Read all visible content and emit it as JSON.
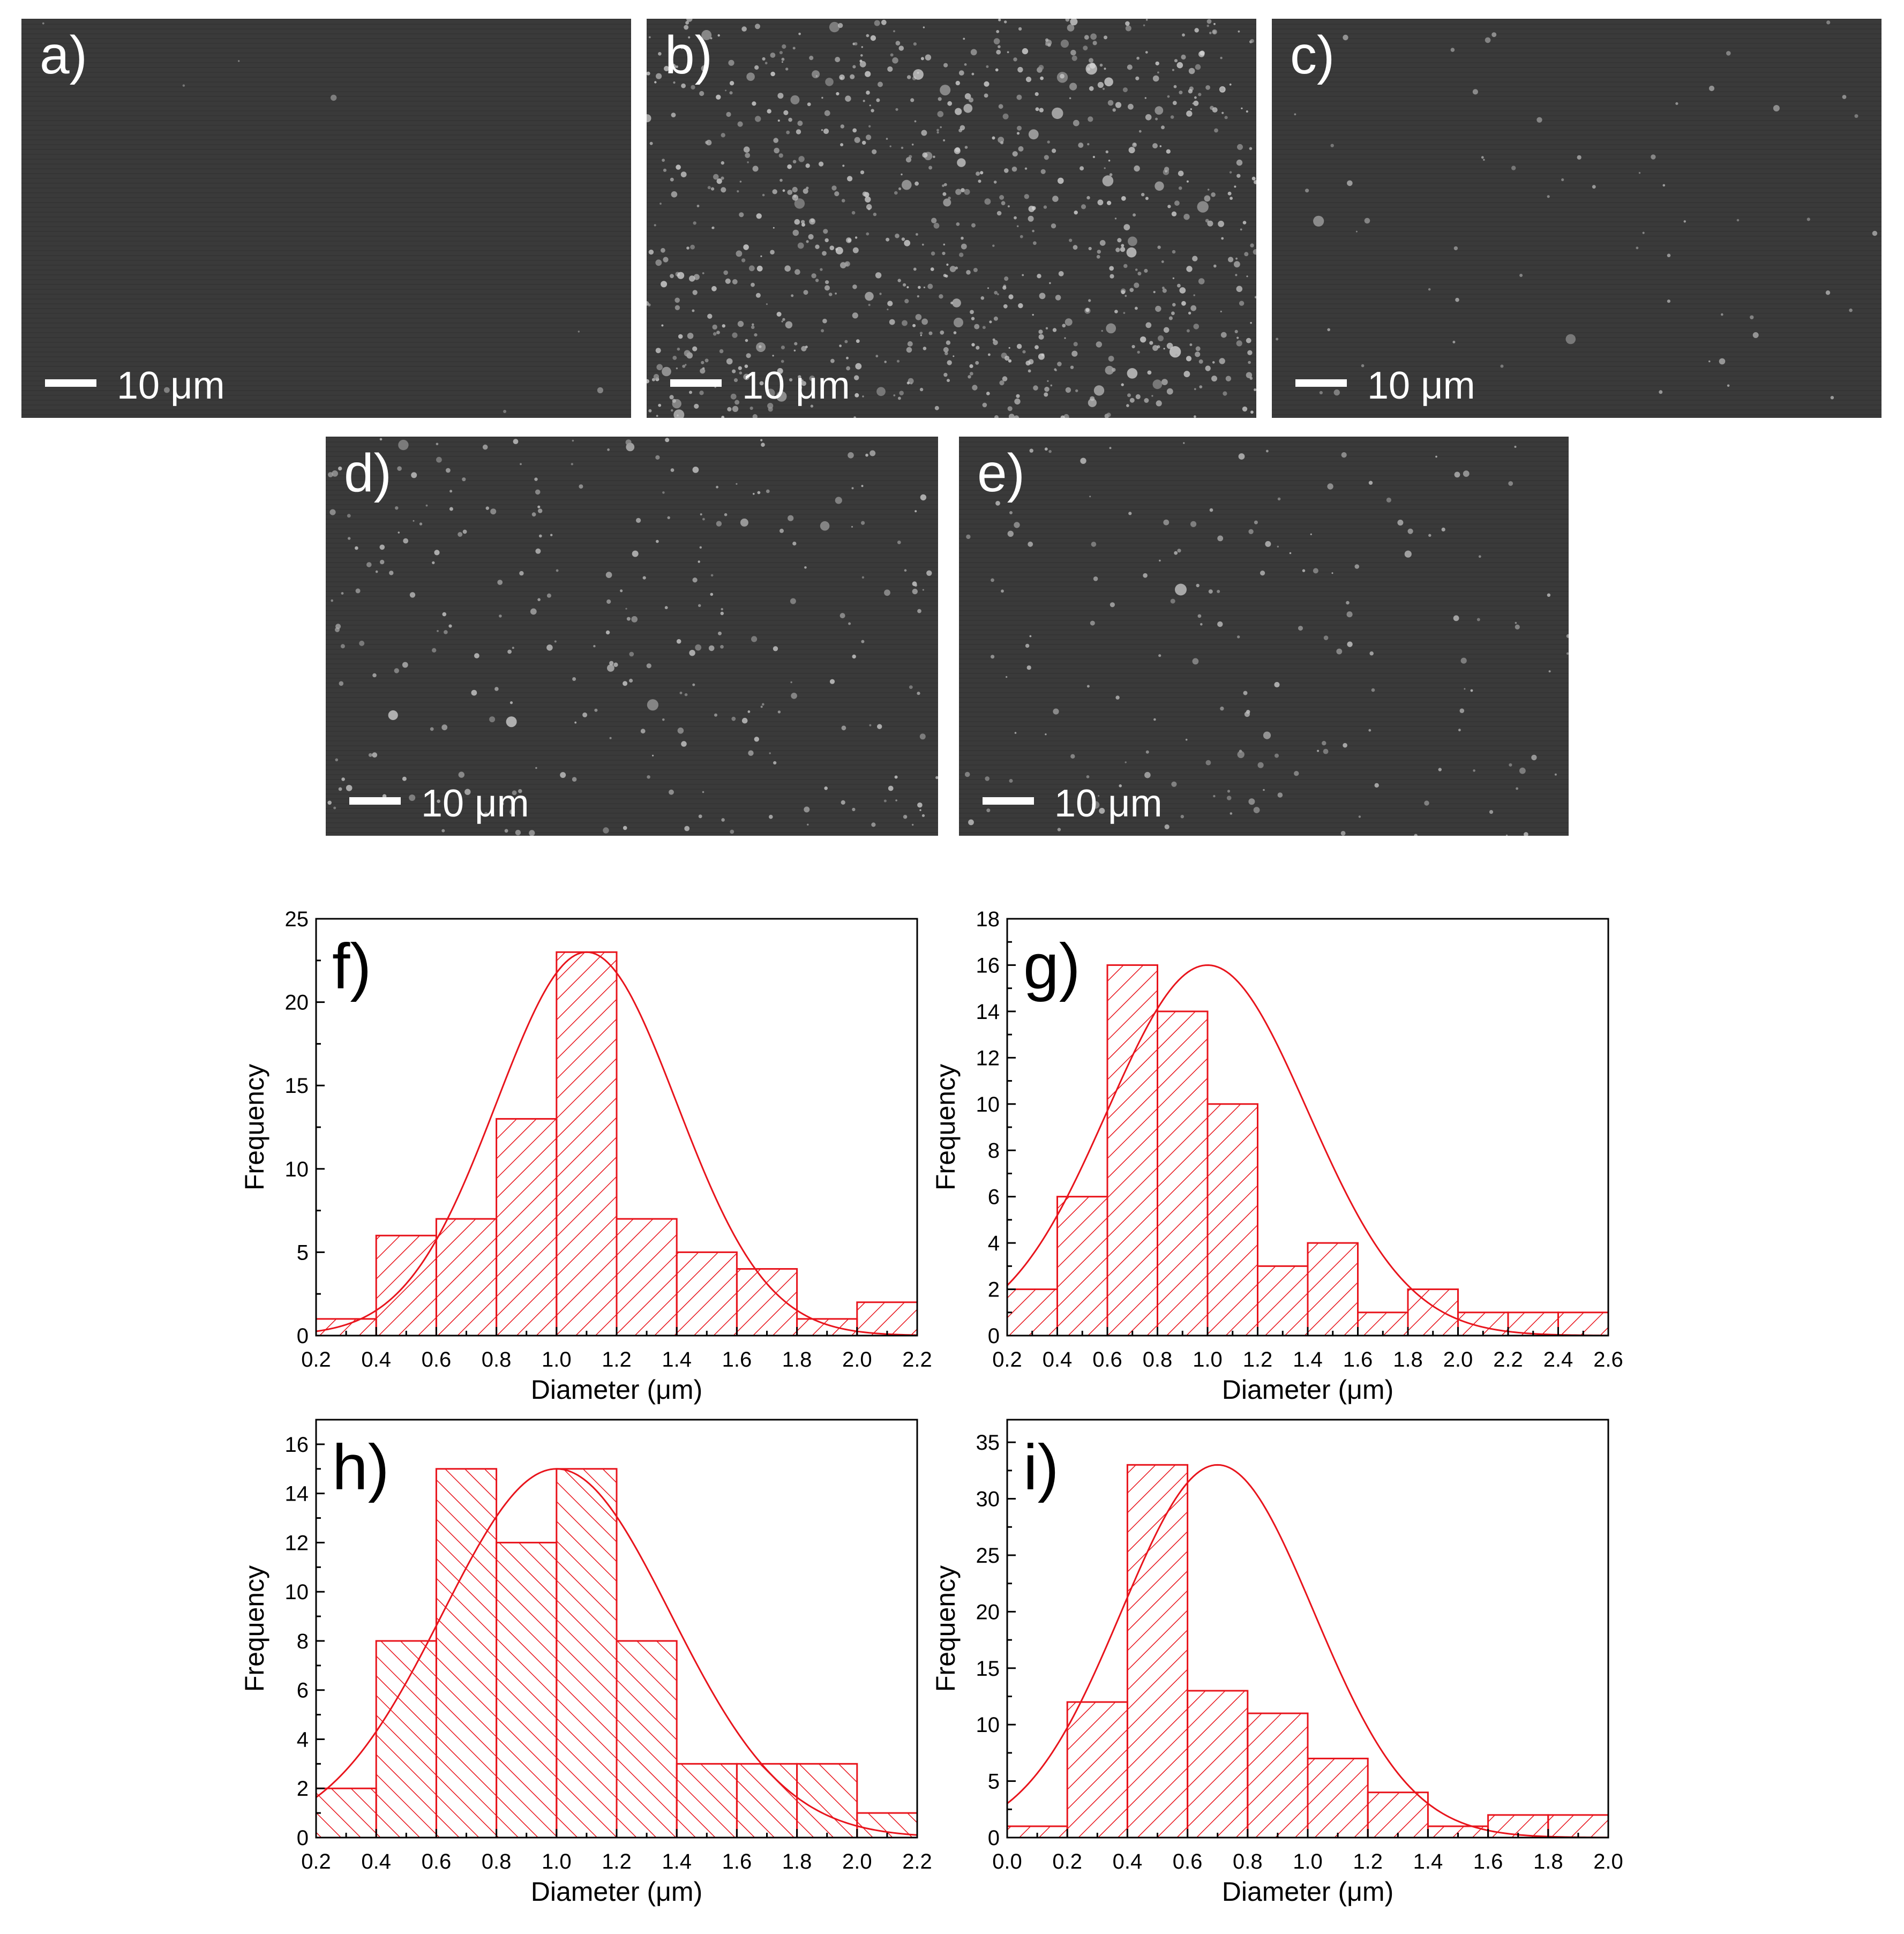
{
  "sem_panels": [
    {
      "label": "a)",
      "scale": "10 μm",
      "particles": 8,
      "brightness": 0.15
    },
    {
      "label": "b)",
      "scale": "10 μm",
      "particles": 900,
      "brightness": 0.85
    },
    {
      "label": "c)",
      "scale": "10 μm",
      "particles": 60,
      "brightness": 0.5
    },
    {
      "label": "d)",
      "scale": "10 μm",
      "particles": 260,
      "brightness": 0.75
    },
    {
      "label": "e)",
      "scale": "10 μm",
      "particles": 160,
      "brightness": 0.7
    }
  ],
  "colors": {
    "series": "#e8141c",
    "axis": "#000000",
    "sem_bg": "#3a3a3a"
  },
  "chart_data": [
    {
      "type": "bar",
      "label": "f)",
      "xlabel": "Diameter (μm)",
      "ylabel": "Frequency",
      "xlim": [
        0.2,
        2.2
      ],
      "ylim": [
        0,
        25
      ],
      "xticks": [
        "0.2",
        "0.4",
        "0.6",
        "0.8",
        "1.0",
        "1.2",
        "1.4",
        "1.6",
        "1.8",
        "2.0",
        "2.2"
      ],
      "yticks": [
        "0",
        "5",
        "10",
        "15",
        "20",
        "25"
      ],
      "bin_edges": [
        0.2,
        0.4,
        0.6,
        0.8,
        1.0,
        1.2,
        1.4,
        1.6,
        1.8,
        2.0,
        2.2
      ],
      "values": [
        1,
        6,
        7,
        13,
        23,
        7,
        5,
        4,
        1,
        2
      ],
      "fit": {
        "mean": 1.1,
        "sigma": 0.3,
        "peak": 23
      },
      "hatch": "backward"
    },
    {
      "type": "bar",
      "label": "g)",
      "xlabel": "Diameter (μm)",
      "ylabel": "Frequency",
      "xlim": [
        0.2,
        2.6
      ],
      "ylim": [
        0,
        18
      ],
      "xticks": [
        "0.2",
        "0.4",
        "0.6",
        "0.8",
        "1.0",
        "1.2",
        "1.4",
        "1.6",
        "1.8",
        "2.0",
        "2.2",
        "2.4",
        "2.6"
      ],
      "yticks": [
        "0",
        "2",
        "4",
        "6",
        "8",
        "10",
        "12",
        "14",
        "16",
        "18"
      ],
      "bin_edges": [
        0.2,
        0.4,
        0.6,
        0.8,
        1.0,
        1.2,
        1.4,
        1.6,
        1.8,
        2.0,
        2.2,
        2.4,
        2.6
      ],
      "values": [
        2,
        6,
        16,
        14,
        10,
        3,
        4,
        1,
        2,
        1,
        1,
        1
      ],
      "fit": {
        "mean": 1.0,
        "sigma": 0.4,
        "peak": 16
      },
      "hatch": "backward"
    },
    {
      "type": "bar",
      "label": "h)",
      "xlabel": "Diameter (μm)",
      "ylabel": "Frequency",
      "xlim": [
        0.2,
        2.2
      ],
      "ylim": [
        0,
        17
      ],
      "xticks": [
        "0.2",
        "0.4",
        "0.6",
        "0.8",
        "1.0",
        "1.2",
        "1.4",
        "1.6",
        "1.8",
        "2.0",
        "2.2"
      ],
      "yticks": [
        "0",
        "2",
        "4",
        "6",
        "8",
        "10",
        "12",
        "14",
        "16"
      ],
      "bin_edges": [
        0.2,
        0.4,
        0.6,
        0.8,
        1.0,
        1.2,
        1.4,
        1.6,
        1.8,
        2.0,
        2.2
      ],
      "values": [
        2,
        8,
        15,
        12,
        15,
        8,
        3,
        3,
        3,
        1
      ],
      "fit": {
        "mean": 1.0,
        "sigma": 0.38,
        "peak": 15
      },
      "hatch": "forward"
    },
    {
      "type": "bar",
      "label": "i)",
      "xlabel": "Diameter (μm)",
      "ylabel": "Frequency",
      "xlim": [
        0.0,
        2.0
      ],
      "ylim": [
        0,
        37
      ],
      "xticks": [
        "0.0",
        "0.2",
        "0.4",
        "0.6",
        "0.8",
        "1.0",
        "1.2",
        "1.4",
        "1.6",
        "1.8",
        "2.0"
      ],
      "yticks": [
        "0",
        "5",
        "10",
        "15",
        "20",
        "25",
        "30",
        "35"
      ],
      "bin_edges": [
        0.0,
        0.2,
        0.4,
        0.6,
        0.8,
        1.0,
        1.2,
        1.4,
        1.6,
        1.8,
        2.0
      ],
      "values": [
        1,
        12,
        33,
        13,
        11,
        7,
        4,
        1,
        2,
        2
      ],
      "fit": {
        "mean": 0.7,
        "sigma": 0.32,
        "peak": 33
      },
      "hatch": "backward"
    }
  ]
}
